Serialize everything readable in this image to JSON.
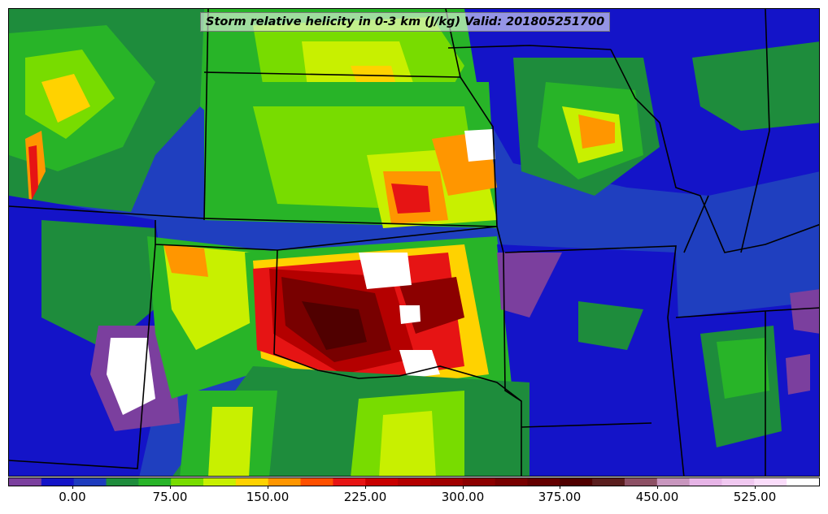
{
  "title": "Storm relative helicity in 0-3 km (J/kg) Valid: 201805251700",
  "colorbar": {
    "ticks": [
      "0.00",
      "75.00",
      "150.00",
      "225.00",
      "300.00",
      "375.00",
      "450.00",
      "525.00"
    ],
    "colors": [
      "#7b3f9e",
      "#1414c8",
      "#1e3cbe",
      "#1e8c3c",
      "#28b428",
      "#78dc00",
      "#c8f000",
      "#ffd200",
      "#ff9600",
      "#ff5000",
      "#e61414",
      "#c80000",
      "#b40000",
      "#a00000",
      "#8c0000",
      "#780000",
      "#640000",
      "#500000",
      "#5a1e1e",
      "#8c5064",
      "#c896be",
      "#e6b4e6",
      "#f0c8f0",
      "#fadcfa",
      "#ffffff"
    ]
  },
  "map": {
    "palette": {
      "ocean_like": "#1f3fbf",
      "dark_blue": "#1414c8",
      "green": "#1e8c3c",
      "light_green": "#28b428",
      "lime": "#c8f000",
      "yellow": "#ffd200",
      "orange": "#ff9600",
      "red": "#e61414",
      "dark_red": "#780000",
      "purple": "#7b3f9e",
      "white": "#ffffff"
    }
  }
}
